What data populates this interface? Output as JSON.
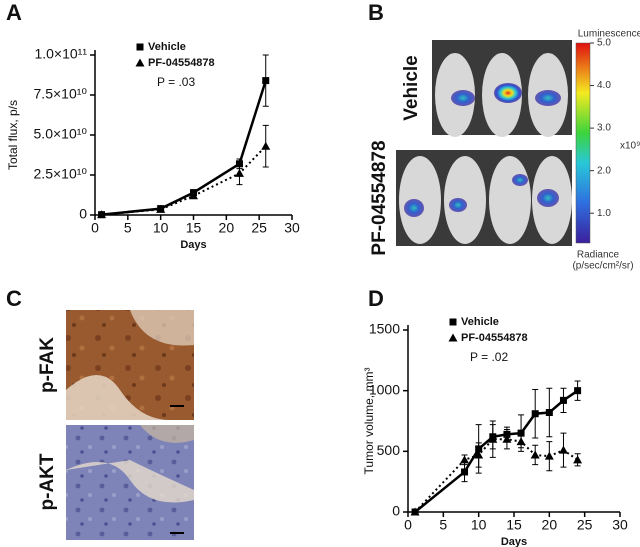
{
  "panel_labels": [
    "A",
    "B",
    "C",
    "D"
  ],
  "chart_data": [
    {
      "type": "line",
      "x_label": "Days",
      "y_label": "Total flux, p/s",
      "annotation": "P = .03",
      "legend": "upper left",
      "xlim": [
        0,
        30
      ],
      "xticks": [
        0,
        5,
        10,
        15,
        20,
        25,
        30
      ],
      "ylim": [
        0,
        100000000000
      ],
      "yticks": [
        0,
        {
          "value": 25000000000,
          "label": "2.5×10¹⁰"
        },
        {
          "value": 50000000000,
          "label": "5.0×10¹⁰"
        },
        {
          "value": 75000000000,
          "label": "7.5×10¹⁰"
        },
        {
          "value": 100000000000,
          "label": "1.0×10¹¹"
        }
      ],
      "x": [
        1,
        10,
        15,
        22,
        26
      ],
      "series": [
        {
          "name": "Vehicle",
          "color": "#000000",
          "marker": "square",
          "line_style": "solid",
          "values": [
            200000000,
            4000000000,
            14000000000,
            32000000000,
            84000000000
          ],
          "errors": [
            0,
            500000000,
            1000000000,
            3000000000,
            16000000000
          ]
        },
        {
          "name": "PF-04554878",
          "color": "#000000",
          "marker": "triangle",
          "line_style": "dotted",
          "values": [
            200000000,
            3500000000,
            12000000000,
            26000000000,
            43000000000
          ],
          "errors": [
            0,
            500000000,
            1000000000,
            7000000000,
            13000000000
          ]
        }
      ]
    },
    {
      "type": "line",
      "x_label": "Days",
      "y_label": "Tumor volume, mm³",
      "annotation": "P = .02",
      "legend": "upper left",
      "xlim": [
        0,
        30
      ],
      "xticks": [
        0,
        5,
        10,
        15,
        20,
        25,
        30
      ],
      "ylim": [
        0,
        1500
      ],
      "yticks": [
        0,
        500,
        1000,
        1500
      ],
      "x": [
        1,
        8,
        10,
        12,
        14,
        16,
        18,
        20,
        22,
        24
      ],
      "series": [
        {
          "name": "Vehicle",
          "color": "#000000",
          "marker": "square",
          "line_style": "solid",
          "values": [
            0,
            330,
            520,
            620,
            640,
            650,
            810,
            820,
            920,
            1000
          ],
          "errors": [
            0,
            80,
            200,
            100,
            60,
            150,
            200,
            200,
            100,
            80
          ]
        },
        {
          "name": "PF-04554878",
          "color": "#000000",
          "marker": "triangle",
          "line_style": "dotted",
          "values": [
            0,
            430,
            470,
            600,
            600,
            580,
            470,
            460,
            510,
            430
          ],
          "errors": [
            0,
            40,
            100,
            150,
            80,
            50,
            80,
            120,
            140,
            50
          ]
        }
      ]
    }
  ],
  "imaging": {
    "row_labels": [
      "Vehicle",
      "PF-04554878"
    ],
    "colorbar": {
      "title": "Luminescence",
      "scale": "x10⁹",
      "clim": [
        0.3,
        5.0
      ],
      "ticks": [
        {
          "value": 1,
          "label": "1.0"
        },
        {
          "value": 2,
          "label": "2.0"
        },
        {
          "value": 3,
          "label": "3.0"
        },
        {
          "value": 4,
          "label": "4.0"
        },
        {
          "value": 5,
          "label": "5.0"
        }
      ],
      "footer": [
        "Radiance",
        "(p/sec/cm²/sr)"
      ]
    }
  },
  "histology": {
    "row_labels": [
      "p-FAK",
      "p-AKT"
    ]
  }
}
